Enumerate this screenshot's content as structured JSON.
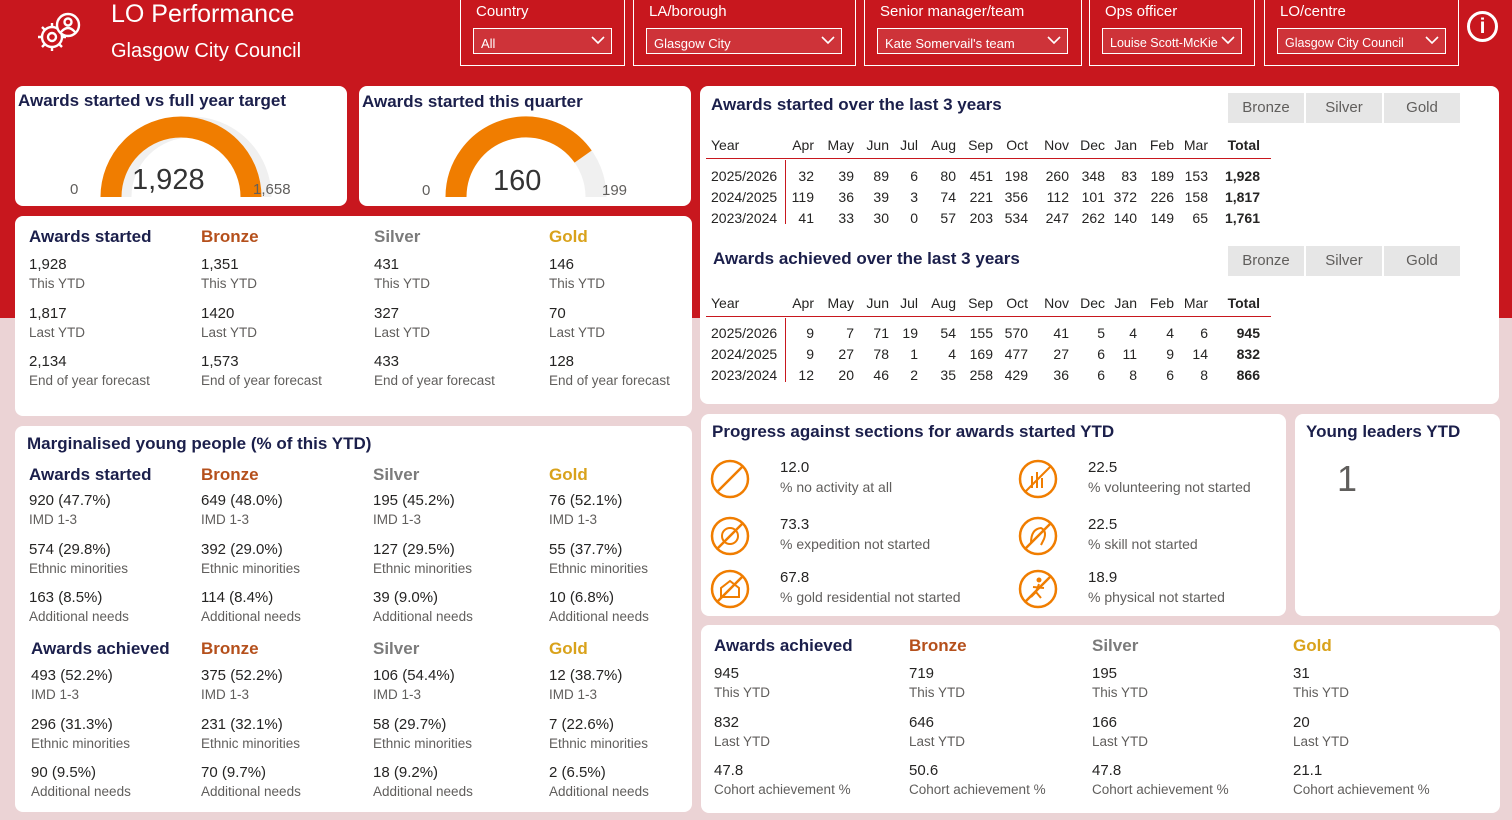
{
  "header": {
    "title": "LO Performance",
    "subtitle": "Glasgow City Council",
    "filters": [
      {
        "label": "Country",
        "value": "All"
      },
      {
        "label": "LA/borough",
        "value": "Glasgow City"
      },
      {
        "label": "Senior manager/team",
        "value": "Kate Somervail's team"
      },
      {
        "label": "Ops officer",
        "value": "Louise Scott-McKie"
      },
      {
        "label": "LO/centre",
        "value": "Glasgow City Council"
      }
    ],
    "info_icon": "i"
  },
  "colors": {
    "brand_red": "#c8171e",
    "gauge_orange": "#f07d00",
    "navy": "#1b1f4b",
    "bronze": "#b5501c",
    "silver": "#7b7b7b",
    "gold": "#d9a21b"
  },
  "gauge_target": {
    "title": "Awards started vs full year target",
    "min": "0",
    "value": "1,928",
    "max": "1,658",
    "fill_fraction": 1.0
  },
  "gauge_quarter": {
    "title": "Awards started this quarter",
    "min": "0",
    "value": "160",
    "max": "199",
    "fill_fraction": 0.804
  },
  "started": {
    "columns": [
      {
        "head": "Awards started",
        "rows": [
          [
            "1,928",
            "This YTD"
          ],
          [
            "1,817",
            "Last YTD"
          ],
          [
            "2,134",
            "End of year forecast"
          ]
        ]
      },
      {
        "head": "Bronze",
        "rows": [
          [
            "1,351",
            "This YTD"
          ],
          [
            "1420",
            "Last YTD"
          ],
          [
            "1,573",
            "End of year forecast"
          ]
        ]
      },
      {
        "head": "Silver",
        "rows": [
          [
            "431",
            "This YTD"
          ],
          [
            "327",
            "Last YTD"
          ],
          [
            "433",
            "End of year forecast"
          ]
        ]
      },
      {
        "head": "Gold",
        "rows": [
          [
            "146",
            "This YTD"
          ],
          [
            "70",
            "Last YTD"
          ],
          [
            "128",
            "End of year forecast"
          ]
        ]
      }
    ]
  },
  "marginalised": {
    "title": "Marginalised young people (% of this YTD)",
    "started": [
      {
        "head": "Awards started",
        "rows": [
          [
            "920 (47.7%)",
            "IMD 1-3"
          ],
          [
            "574 (29.8%)",
            "Ethnic minorities"
          ],
          [
            "163 (8.5%)",
            "Additional needs"
          ]
        ]
      },
      {
        "head": "Bronze",
        "rows": [
          [
            "649 (48.0%)",
            "IMD 1-3"
          ],
          [
            "392 (29.0%)",
            "Ethnic minorities"
          ],
          [
            "114 (8.4%)",
            "Additional needs"
          ]
        ]
      },
      {
        "head": "Silver",
        "rows": [
          [
            "195 (45.2%)",
            "IMD 1-3"
          ],
          [
            "127 (29.5%)",
            "Ethnic minorities"
          ],
          [
            "39 (9.0%)",
            "Additional needs"
          ]
        ]
      },
      {
        "head": "Gold",
        "rows": [
          [
            "76 (52.1%)",
            "IMD 1-3"
          ],
          [
            "55 (37.7%)",
            "Ethnic minorities"
          ],
          [
            "10 (6.8%)",
            "Additional needs"
          ]
        ]
      }
    ],
    "achieved": [
      {
        "head": "Awards achieved",
        "rows": [
          [
            "493 (52.2%)",
            "IMD 1-3"
          ],
          [
            "296 (31.3%)",
            "Ethnic minorities"
          ],
          [
            "90 (9.5%)",
            "Additional needs"
          ]
        ]
      },
      {
        "head": "Bronze",
        "rows": [
          [
            "375 (52.2%)",
            "IMD 1-3"
          ],
          [
            "231 (32.1%)",
            "Ethnic minorities"
          ],
          [
            "70 (9.7%)",
            "Additional needs"
          ]
        ]
      },
      {
        "head": "Silver",
        "rows": [
          [
            "106 (54.4%)",
            "IMD 1-3"
          ],
          [
            "58 (29.7%)",
            "Ethnic minorities"
          ],
          [
            "18 (9.2%)",
            "Additional needs"
          ]
        ]
      },
      {
        "head": "Gold",
        "rows": [
          [
            "12 (38.7%)",
            "IMD 1-3"
          ],
          [
            "7 (22.6%)",
            "Ethnic minorities"
          ],
          [
            "2 (6.5%)",
            "Additional needs"
          ]
        ]
      }
    ]
  },
  "table_started": {
    "title": "Awards started over the last 3 years",
    "toggles": [
      "Bronze",
      "Silver",
      "Gold"
    ],
    "headers": [
      "Year",
      "Apr",
      "May",
      "Jun",
      "Jul",
      "Aug",
      "Sep",
      "Oct",
      "Nov",
      "Dec",
      "Jan",
      "Feb",
      "Mar",
      "Total"
    ],
    "rows": [
      [
        "2025/2026",
        "32",
        "39",
        "89",
        "6",
        "80",
        "451",
        "198",
        "260",
        "348",
        "83",
        "189",
        "153",
        "1,928"
      ],
      [
        "2024/2025",
        "119",
        "36",
        "39",
        "3",
        "74",
        "221",
        "356",
        "112",
        "101",
        "372",
        "226",
        "158",
        "1,817"
      ],
      [
        "2023/2024",
        "41",
        "33",
        "30",
        "0",
        "57",
        "203",
        "534",
        "247",
        "262",
        "140",
        "149",
        "65",
        "1,761"
      ]
    ]
  },
  "table_achieved": {
    "title": "Awards achieved over the last 3 years",
    "toggles": [
      "Bronze",
      "Silver",
      "Gold"
    ],
    "headers": [
      "Year",
      "Apr",
      "May",
      "Jun",
      "Jul",
      "Aug",
      "Sep",
      "Oct",
      "Nov",
      "Dec",
      "Jan",
      "Feb",
      "Mar",
      "Total"
    ],
    "rows": [
      [
        "2025/2026",
        "9",
        "7",
        "71",
        "19",
        "54",
        "155",
        "570",
        "41",
        "5",
        "4",
        "4",
        "6",
        "945"
      ],
      [
        "2024/2025",
        "9",
        "27",
        "78",
        "1",
        "4",
        "169",
        "477",
        "27",
        "6",
        "11",
        "9",
        "14",
        "832"
      ],
      [
        "2023/2024",
        "12",
        "20",
        "46",
        "2",
        "35",
        "258",
        "429",
        "36",
        "6",
        "8",
        "6",
        "8",
        "866"
      ]
    ]
  },
  "progress": {
    "title": "Progress against sections for awards started YTD",
    "items": [
      {
        "value": "12.0",
        "label": "% no activity at all",
        "icon": "no-activity-icon"
      },
      {
        "value": "22.5",
        "label": "% volunteering not started",
        "icon": "volunteering-icon"
      },
      {
        "value": "73.3",
        "label": "% expedition not started",
        "icon": "expedition-icon"
      },
      {
        "value": "22.5",
        "label": "% skill not started",
        "icon": "skill-icon"
      },
      {
        "value": "67.8",
        "label": "% gold residential not started",
        "icon": "residential-icon"
      },
      {
        "value": "18.9",
        "label": "% physical not started",
        "icon": "physical-icon"
      }
    ]
  },
  "young_leaders": {
    "title": "Young leaders YTD",
    "value": "1"
  },
  "achieved": {
    "columns": [
      {
        "head": "Awards achieved",
        "rows": [
          [
            "945",
            "This YTD"
          ],
          [
            "832",
            "Last YTD"
          ],
          [
            "47.8",
            "Cohort achievement %"
          ]
        ]
      },
      {
        "head": "Bronze",
        "rows": [
          [
            "719",
            "This YTD"
          ],
          [
            "646",
            "Last YTD"
          ],
          [
            "50.6",
            "Cohort achievement %"
          ]
        ]
      },
      {
        "head": "Silver",
        "rows": [
          [
            "195",
            "This YTD"
          ],
          [
            "166",
            "Last YTD"
          ],
          [
            "47.8",
            "Cohort achievement %"
          ]
        ]
      },
      {
        "head": "Gold",
        "rows": [
          [
            "31",
            "This YTD"
          ],
          [
            "20",
            "Last YTD"
          ],
          [
            "21.1",
            "Cohort achievement %"
          ]
        ]
      }
    ]
  }
}
